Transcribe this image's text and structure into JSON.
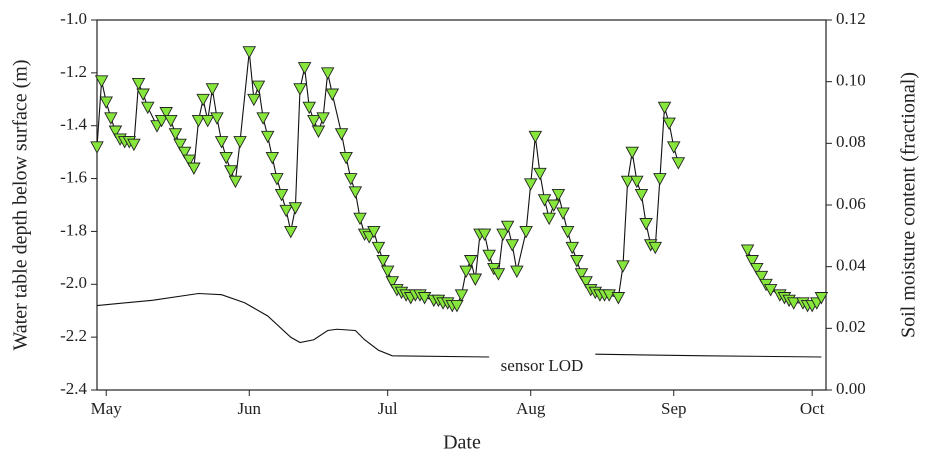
{
  "chart_data": {
    "type": "line",
    "xlabel": "Date",
    "ylabel": "Water table depth below surface (m)",
    "y2label": "Soil moisture content (fractional)",
    "annotation": "sensor LOD",
    "xlim": [
      -2,
      156
    ],
    "xticks": [
      {
        "value": 0,
        "label": "May"
      },
      {
        "value": 31,
        "label": "Jun"
      },
      {
        "value": 61,
        "label": "Jul"
      },
      {
        "value": 92,
        "label": "Aug"
      },
      {
        "value": 123,
        "label": "Sep"
      },
      {
        "value": 153,
        "label": "Oct"
      }
    ],
    "ylim": [
      -2.4,
      -1.0
    ],
    "yticks": [
      -2.4,
      -2.2,
      {
        "value": -2,
        "label": "-2.0"
      },
      -1.8,
      -1.6,
      -1.4,
      -1.2,
      {
        "value": -1,
        "label": "-1.0"
      }
    ],
    "y2lim": [
      0,
      0.12
    ],
    "y2ticks": [
      {
        "value": 0,
        "label": "0.00"
      },
      0.02,
      0.04,
      0.06,
      0.08,
      {
        "value": 0.1,
        "label": "0.10"
      },
      0.12
    ],
    "series": [
      {
        "color": "#86e63c",
        "marker": "triangle-down",
        "x": [
          -2,
          -1,
          0,
          1,
          2,
          3,
          4,
          5,
          6,
          7,
          8,
          9,
          11,
          12,
          13,
          14,
          15,
          16,
          17,
          18,
          19,
          20,
          21,
          22,
          23,
          24,
          25,
          26,
          27,
          28,
          29,
          31,
          32,
          33,
          34,
          35,
          36,
          37,
          38,
          39,
          40,
          41,
          42,
          43,
          44,
          45,
          46,
          47,
          48,
          49,
          51,
          52,
          53,
          54,
          55,
          56,
          57,
          58,
          59,
          60,
          61,
          62,
          63,
          64,
          65,
          66,
          67,
          68,
          69,
          71,
          72,
          73,
          74,
          75,
          76,
          77,
          78,
          79,
          80,
          81,
          82,
          83,
          84,
          85,
          86,
          87,
          88,
          89,
          91,
          92,
          93,
          94,
          95,
          96,
          97,
          98,
          99,
          100,
          101,
          102,
          103,
          104,
          105,
          106,
          107,
          108,
          109,
          111,
          112,
          113,
          114,
          115,
          116,
          117,
          118,
          119,
          120,
          121,
          122,
          123,
          124,
          131,
          139,
          140,
          141,
          142,
          143,
          144,
          146,
          147,
          148,
          149,
          151,
          152,
          153,
          154,
          155
        ],
        "values": [
          -1.48,
          -1.23,
          -1.31,
          -1.37,
          -1.42,
          -1.45,
          -1.46,
          -1.46,
          -1.47,
          -1.24,
          -1.28,
          -1.33,
          -1.4,
          -1.38,
          -1.35,
          -1.38,
          -1.43,
          -1.47,
          -1.5,
          -1.53,
          -1.56,
          -1.38,
          -1.3,
          -1.38,
          -1.26,
          -1.37,
          -1.46,
          -1.52,
          -1.57,
          -1.61,
          -1.46,
          -1.12,
          -1.3,
          -1.25,
          -1.37,
          -1.44,
          -1.52,
          -1.6,
          -1.66,
          -1.72,
          -1.8,
          -1.71,
          -1.26,
          -1.18,
          -1.33,
          -1.38,
          -1.42,
          -1.37,
          -1.2,
          -1.28,
          -1.43,
          -1.52,
          -1.6,
          -1.65,
          -1.75,
          -1.81,
          -1.82,
          -1.8,
          -1.86,
          -1.91,
          -1.95,
          -1.99,
          -2.02,
          -2.03,
          -2.04,
          -2.05,
          -2.04,
          -2.04,
          -2.05,
          -2.06,
          -2.06,
          -2.07,
          -2.07,
          -2.08,
          -2.08,
          -2.04,
          -1.95,
          -1.91,
          -1.98,
          -1.81,
          -1.81,
          -1.89,
          -1.94,
          -1.96,
          -1.81,
          -1.78,
          -1.85,
          -1.95,
          -1.8,
          -1.62,
          -1.44,
          -1.58,
          -1.68,
          -1.75,
          -1.7,
          -1.66,
          -1.73,
          -1.8,
          -1.86,
          -1.91,
          -1.96,
          -1.99,
          -2.02,
          -2.03,
          -2.04,
          -2.04,
          -2.04,
          -2.05,
          -1.93,
          -1.61,
          -1.5,
          -1.61,
          -1.66,
          -1.77,
          -1.85,
          -1.86,
          -1.6,
          -1.33,
          -1.39,
          -1.48,
          -1.54,
          null,
          -1.87,
          -1.91,
          -1.94,
          -1.97,
          -2.0,
          -2.02,
          -2.04,
          -2.05,
          -2.06,
          -2.07,
          -2.07,
          -2.08,
          -2.08,
          -2.07,
          -2.05
        ]
      },
      {
        "color": "#000000",
        "axis": "y2",
        "x": [
          -2,
          10,
          20,
          25,
          30,
          35,
          40,
          42,
          45,
          48,
          50,
          54,
          56,
          59,
          62,
          83,
          90,
          106,
          130,
          155
        ],
        "values": [
          0.0274,
          0.0291,
          0.0313,
          0.0309,
          0.0283,
          0.024,
          0.0171,
          0.0154,
          0.0163,
          0.0193,
          0.0197,
          0.0193,
          0.0163,
          0.0129,
          0.0111,
          0.0107,
          null,
          0.0116,
          0.0111,
          0.0107
        ]
      }
    ]
  }
}
